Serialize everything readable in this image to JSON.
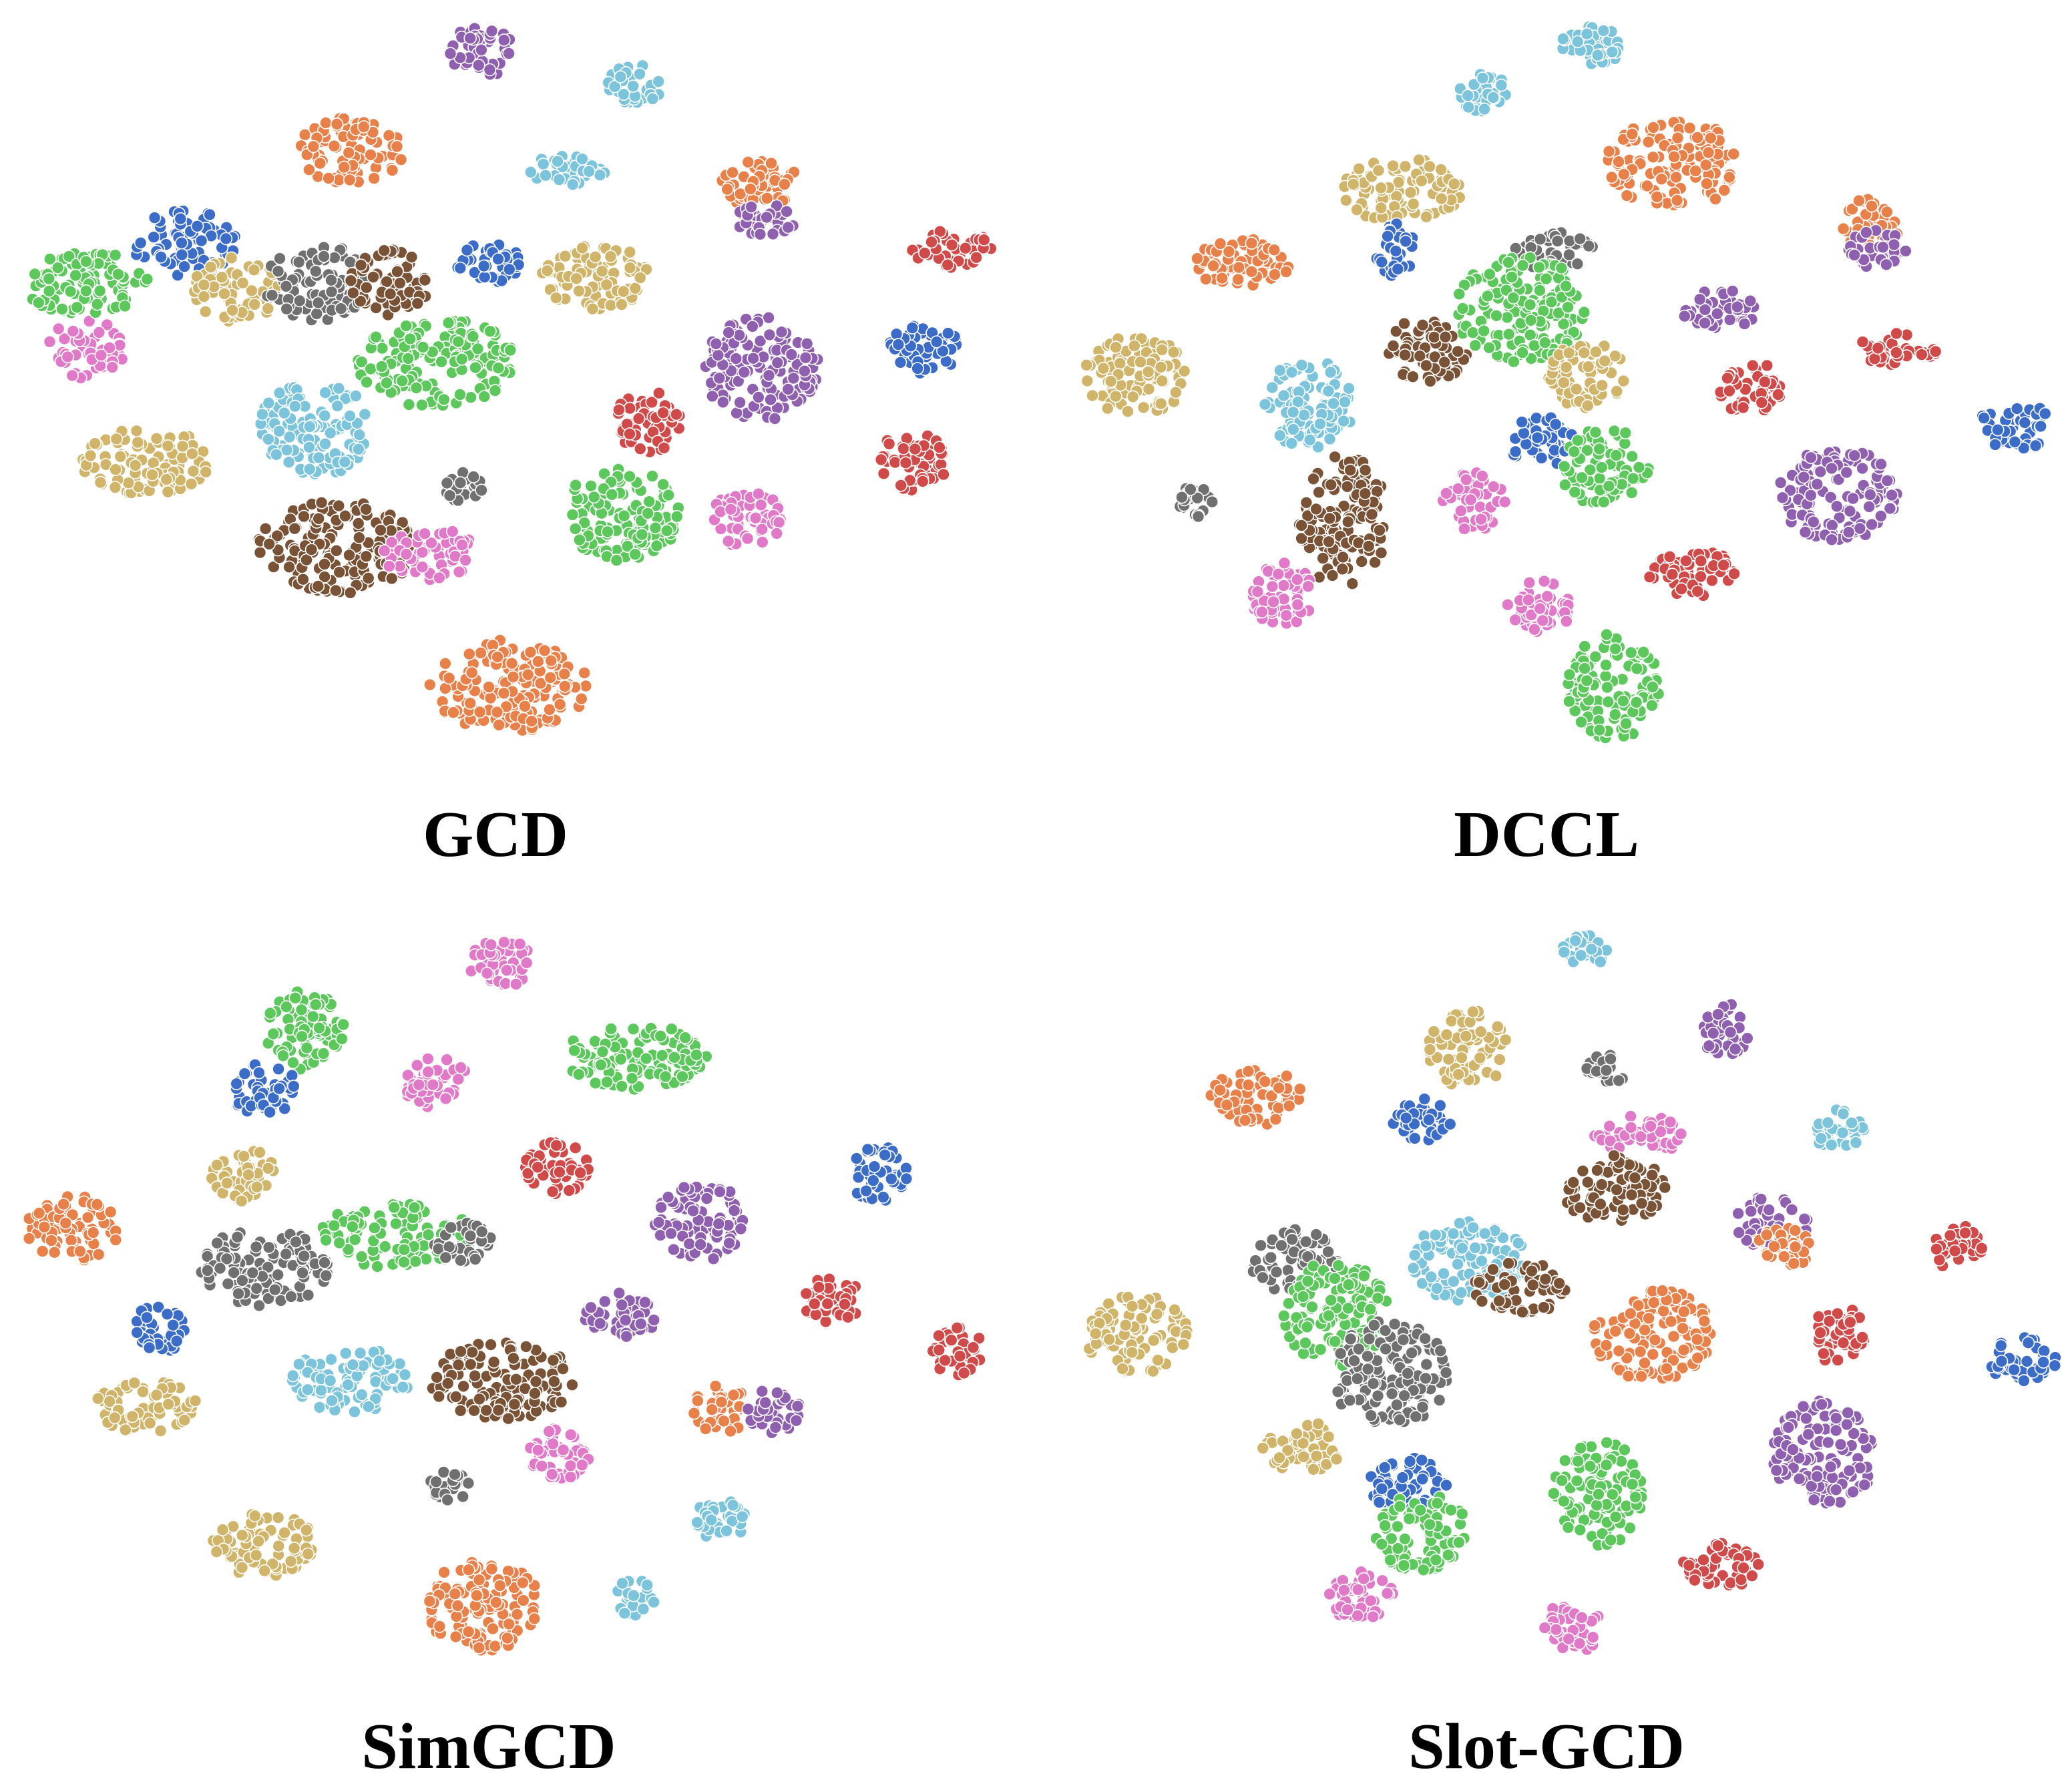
{
  "panels": [
    {
      "label": "GCD"
    },
    {
      "label": "DCCL"
    },
    {
      "label": "SimGCD"
    },
    {
      "label": "Slot-GCD"
    }
  ]
}
